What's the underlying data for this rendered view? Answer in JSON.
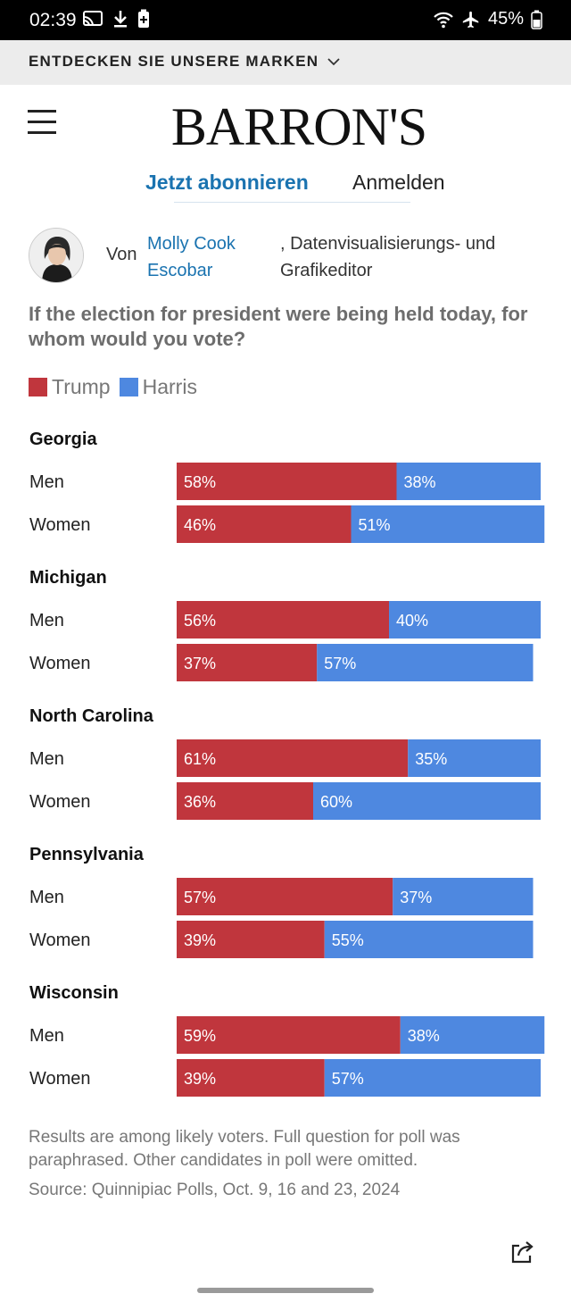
{
  "status_bar": {
    "time": "02:39",
    "battery": "45%"
  },
  "brand_bar": {
    "label": "ENTDECKEN SIE UNSERE MARKEN"
  },
  "header": {
    "logo": "BARRON'S",
    "subscribe_label": "Jetzt abonnieren",
    "login_label": "Anmelden"
  },
  "byline": {
    "prefix": "Von",
    "author": "Molly Cook Escobar",
    "role": ", Datenvisualisierungs- und Grafikeditor"
  },
  "colors": {
    "trump": "#c0363d",
    "harris": "#4e88e0"
  },
  "chart_data": {
    "type": "bar",
    "stacked": true,
    "orientation": "horizontal",
    "title": "If the election for president were being held today, for whom would you vote?",
    "legend": [
      "Trump",
      "Harris"
    ],
    "legend_position": "top-left",
    "unit": "%",
    "groups": [
      {
        "state": "Georgia",
        "rows": [
          {
            "label": "Men",
            "trump": 58,
            "harris": 38
          },
          {
            "label": "Women",
            "trump": 46,
            "harris": 51
          }
        ]
      },
      {
        "state": "Michigan",
        "rows": [
          {
            "label": "Men",
            "trump": 56,
            "harris": 40
          },
          {
            "label": "Women",
            "trump": 37,
            "harris": 57
          }
        ]
      },
      {
        "state": "North Carolina",
        "rows": [
          {
            "label": "Men",
            "trump": 61,
            "harris": 35
          },
          {
            "label": "Women",
            "trump": 36,
            "harris": 60
          }
        ]
      },
      {
        "state": "Pennsylvania",
        "rows": [
          {
            "label": "Men",
            "trump": 57,
            "harris": 37
          },
          {
            "label": "Women",
            "trump": 39,
            "harris": 55
          }
        ]
      },
      {
        "state": "Wisconsin",
        "rows": [
          {
            "label": "Men",
            "trump": 59,
            "harris": 38
          },
          {
            "label": "Women",
            "trump": 39,
            "harris": 57
          }
        ]
      }
    ]
  },
  "footer": {
    "notes": "Results are among likely voters. Full question for poll was paraphrased. Other candidates in poll were omitted.",
    "source": "Source: Quinnipiac Polls, Oct. 9, 16 and 23, 2024"
  },
  "icons": {
    "share": "share-icon",
    "menu": "menu-icon"
  }
}
